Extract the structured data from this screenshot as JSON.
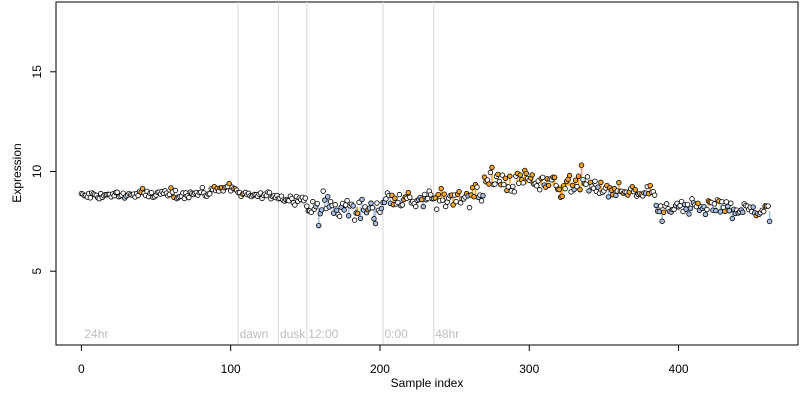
{
  "chart_data": {
    "type": "scatter",
    "title": "",
    "xlabel": "Sample index",
    "ylabel": "Expression",
    "xlim": [
      -17,
      480
    ],
    "ylim": [
      1.3,
      18.5
    ],
    "xticks": [
      0,
      100,
      200,
      300,
      400
    ],
    "yticks": [
      5,
      10,
      15
    ],
    "grid": false,
    "legend": "none",
    "colors": {
      "point_stroke": "#000000",
      "fill_default": "#ffffff",
      "fill_high": "#f5a623",
      "fill_low": "#a8c0e6",
      "line_high": "#f5a623",
      "line_low": "#a8c0e6",
      "separator": "#d8d8d8",
      "annotation": "#bdbdbd"
    },
    "annotations": [
      {
        "x": 2,
        "label": "24hr"
      },
      {
        "x": 106,
        "label": "dawn"
      },
      {
        "x": 133,
        "label": "dusk"
      },
      {
        "x": 152,
        "label": "12:00"
      },
      {
        "x": 203,
        "label": "0:00"
      },
      {
        "x": 237,
        "label": "48hr"
      }
    ],
    "separators": [
      105,
      132,
      151,
      202,
      236
    ],
    "segments": [
      {
        "x0": 0,
        "x1": 88,
        "mean": 8.85,
        "amp": 0.22,
        "trend": 0.15,
        "low_frac": 0.04,
        "high_frac": 0.04
      },
      {
        "x0": 88,
        "x1": 105,
        "mean": 9.15,
        "amp": 0.22,
        "trend": 0.0,
        "low_frac": 0.0,
        "high_frac": 0.45
      },
      {
        "x0": 105,
        "x1": 132,
        "mean": 8.8,
        "amp": 0.18,
        "trend": 0.0,
        "low_frac": 0.0,
        "high_frac": 0.05
      },
      {
        "x0": 132,
        "x1": 151,
        "mean": 8.65,
        "amp": 0.2,
        "trend": 0.0,
        "low_frac": 0.05,
        "high_frac": 0.0
      },
      {
        "x0": 151,
        "x1": 202,
        "mean": 8.2,
        "amp": 0.55,
        "trend": 0.1,
        "low_frac": 0.5,
        "high_frac": 0.05
      },
      {
        "x0": 202,
        "x1": 236,
        "mean": 8.6,
        "amp": 0.45,
        "trend": -0.2,
        "low_frac": 0.1,
        "high_frac": 0.25
      },
      {
        "x0": 236,
        "x1": 270,
        "mean": 8.7,
        "amp": 0.45,
        "trend": 0.3,
        "low_frac": 0.1,
        "high_frac": 0.35
      },
      {
        "x0": 270,
        "x1": 340,
        "mean": 9.35,
        "amp": 0.5,
        "trend": -0.2,
        "low_frac": 0.05,
        "high_frac": 0.55
      },
      {
        "x0": 340,
        "x1": 385,
        "mean": 8.95,
        "amp": 0.35,
        "trend": -0.4,
        "low_frac": 0.1,
        "high_frac": 0.25
      },
      {
        "x0": 385,
        "x1": 430,
        "mean": 8.2,
        "amp": 0.4,
        "trend": 0.3,
        "low_frac": 0.4,
        "high_frac": 0.1
      },
      {
        "x0": 430,
        "x1": 462,
        "mean": 8.1,
        "amp": 0.35,
        "trend": -0.2,
        "low_frac": 0.45,
        "high_frac": 0.05
      }
    ],
    "n_points": 462
  }
}
